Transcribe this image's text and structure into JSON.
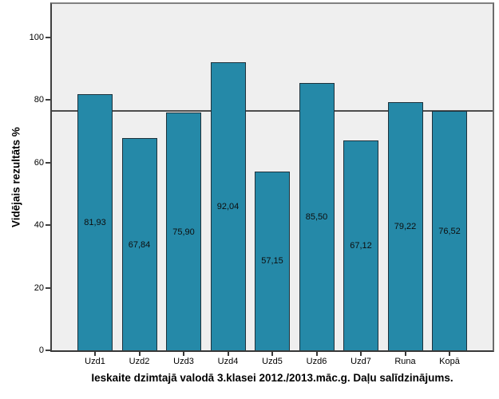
{
  "chart_data": {
    "type": "bar",
    "title": "Ieskaite dzimtajā valodā 3.klasei 2012./2013.māc.g. Daļu salīdzinājums.",
    "ylabel": "Vidējais rezultāts %",
    "xlabel": "",
    "categories": [
      "Uzd1",
      "Uzd2",
      "Uzd3",
      "Uzd4",
      "Uzd5",
      "Uzd6",
      "Uzd7",
      "Runa",
      "Kopā"
    ],
    "values": [
      81.93,
      67.84,
      75.9,
      92.04,
      57.15,
      85.5,
      67.12,
      79.22,
      76.52
    ],
    "value_labels": [
      "81,93",
      "67,84",
      "75,90",
      "92,04",
      "57,15",
      "85,50",
      "67,12",
      "79,22",
      "76,52"
    ],
    "yticks": [
      0,
      20,
      40,
      60,
      80,
      100
    ],
    "ylim": [
      0,
      110.7
    ],
    "reference_line": 76.52,
    "grid": false,
    "legend": "none",
    "colors": {
      "bar_fill": "#2589A8",
      "bar_border": "#1E323C",
      "plot_background": "#EFEFEF",
      "reference_line": "#4D4D4D",
      "axis_frame": "#3F3F3F",
      "text": "#000000"
    }
  }
}
